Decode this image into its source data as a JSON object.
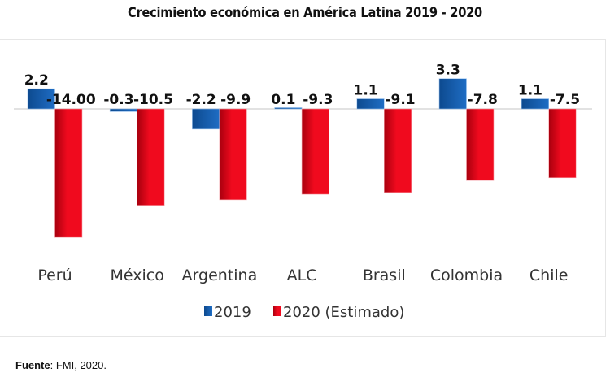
{
  "chart_data": {
    "type": "bar",
    "title": "Crecimiento económica en América Latina 2019 - 2020",
    "xlabel": "",
    "ylabel": "",
    "categories": [
      "Perú",
      "México",
      "Argentina",
      "ALC",
      "Brasil",
      "Colombia",
      "Chile"
    ],
    "series": [
      {
        "name": "2019",
        "values": [
          2.2,
          -0.3,
          -2.2,
          0.1,
          1.1,
          3.3,
          1.1
        ],
        "labels": [
          "2.2",
          "-0.3",
          "-2.2",
          "0.1",
          "1.1",
          "3.3",
          "1.1"
        ],
        "color": "#1f6dc4",
        "color_dark": "#0d4a8f"
      },
      {
        "name": "2020 (Estimado)",
        "values": [
          -14.0,
          -10.5,
          -9.9,
          -9.3,
          -9.1,
          -7.8,
          -7.5
        ],
        "labels": [
          "-14.00",
          "-10.5",
          "-9.9",
          "-9.3",
          "-9.1",
          "-7.8",
          "-7.5"
        ],
        "color": "#f00a1e",
        "color_dark": "#a8000e"
      }
    ],
    "ylim": [
      -15,
      4
    ],
    "grid": false,
    "legend_position": "bottom-center",
    "baseline": 0
  },
  "source": {
    "label": "Fuente",
    "text": ": FMI, 2020."
  }
}
